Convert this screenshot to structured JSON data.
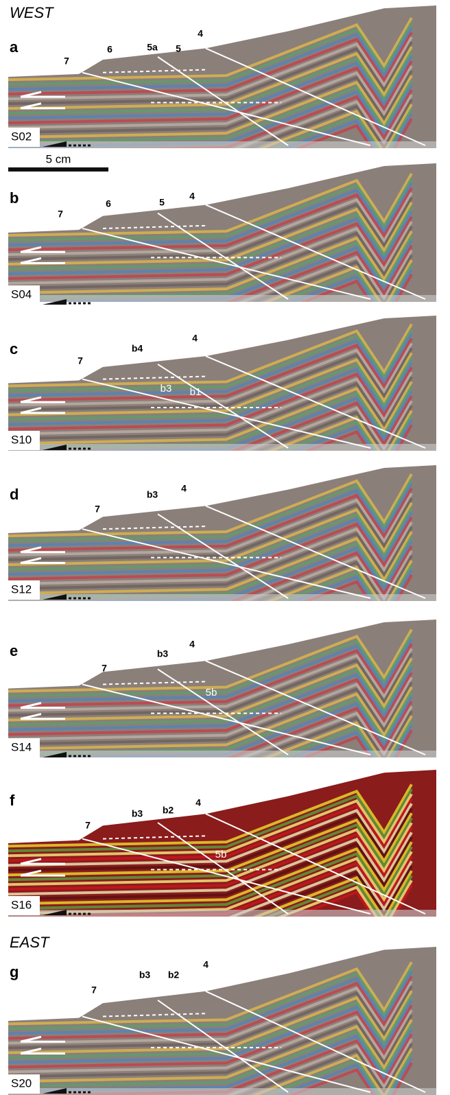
{
  "header": {
    "west": "WEST",
    "east": "EAST"
  },
  "scale_bar": "5 cm",
  "panels": [
    {
      "letter": "a",
      "sample": "S02",
      "labels": [
        "7",
        "6",
        "5a",
        "5",
        "4"
      ]
    },
    {
      "letter": "b",
      "sample": "S04",
      "labels": [
        "7",
        "6",
        "5",
        "4"
      ]
    },
    {
      "letter": "c",
      "sample": "S10",
      "labels": [
        "7",
        "b4",
        "4",
        "b3",
        "b1"
      ]
    },
    {
      "letter": "d",
      "sample": "S12",
      "labels": [
        "7",
        "b3",
        "4"
      ]
    },
    {
      "letter": "e",
      "sample": "S14",
      "labels": [
        "7",
        "b3",
        "4",
        "5b"
      ]
    },
    {
      "letter": "f",
      "sample": "S16",
      "labels": [
        "7",
        "b3",
        "b2",
        "4",
        "5b"
      ]
    },
    {
      "letter": "g",
      "sample": "S20",
      "labels": [
        "7",
        "b3",
        "b2",
        "4"
      ]
    }
  ]
}
